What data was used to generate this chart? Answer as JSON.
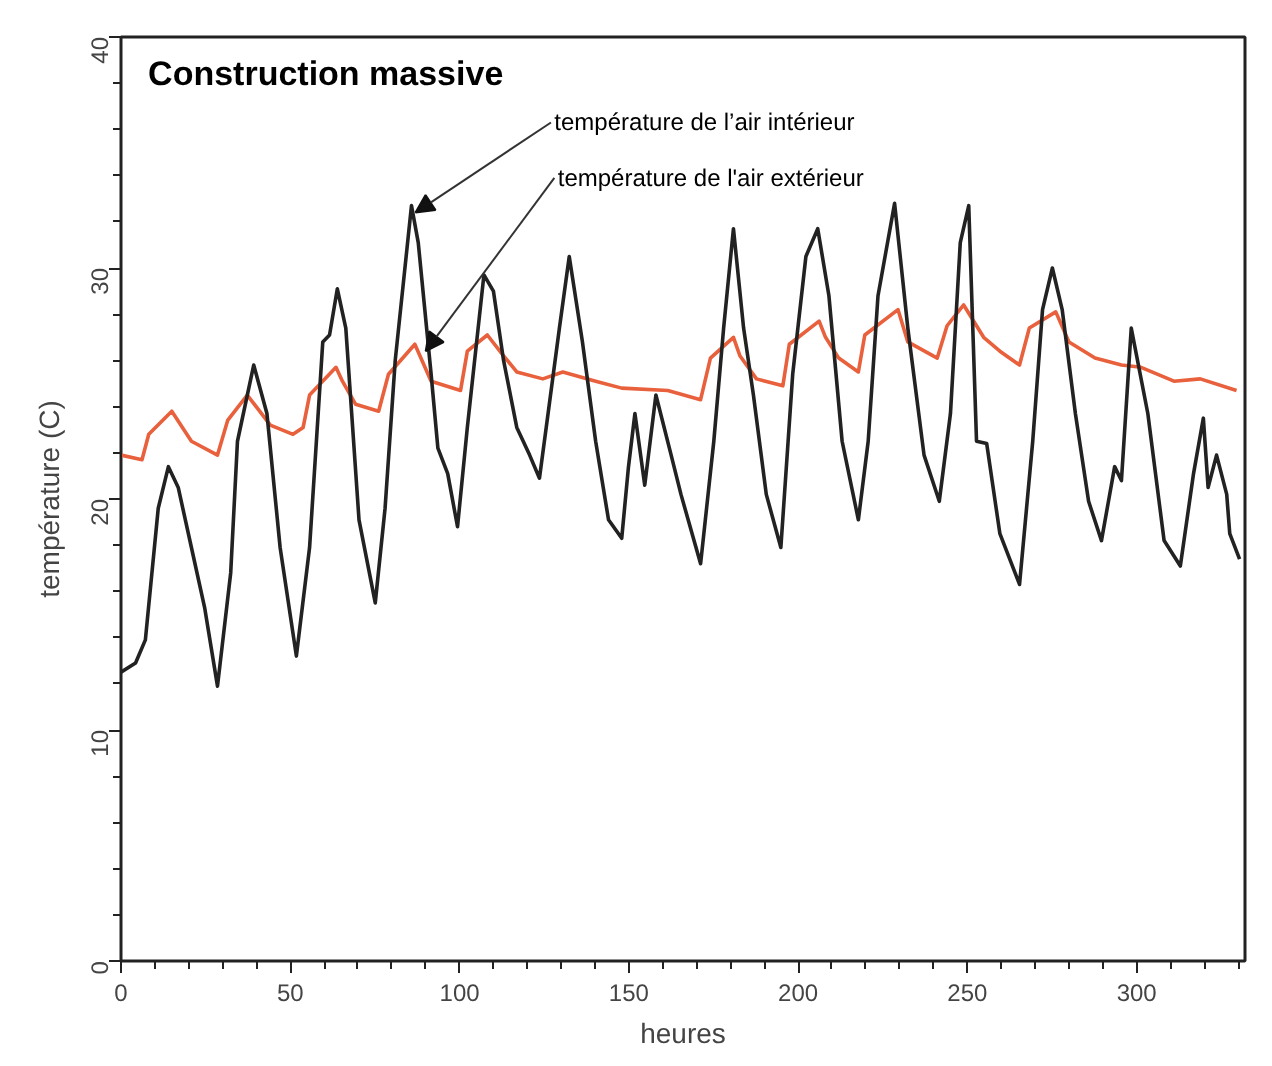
{
  "chart_data": {
    "type": "line",
    "title": "Construction massive",
    "xlabel": "heures",
    "ylabel": "température (C)",
    "annotations": [
      {
        "text": "température de l’air intérieur",
        "x": 86,
        "y": 32.4
      },
      {
        "text": "température de l'air extérieur",
        "x": 89,
        "y": 26.4
      }
    ],
    "xlim": [
      0,
      332
    ],
    "ylim": [
      0,
      40
    ],
    "xticks": [
      0,
      {
        "value": 10,
        "label": null
      },
      {
        "value": 20,
        "label": null
      },
      {
        "value": 30,
        "label": null
      },
      {
        "value": 40,
        "label": null
      },
      50,
      {
        "value": 60,
        "label": null
      },
      {
        "value": 70,
        "label": null
      },
      {
        "value": 80,
        "label": null
      },
      {
        "value": 90,
        "label": null
      },
      100,
      {
        "value": 110,
        "label": null
      },
      {
        "value": 120,
        "label": null
      },
      {
        "value": 130,
        "label": null
      },
      {
        "value": 140,
        "label": null
      },
      150,
      {
        "value": 160,
        "label": null
      },
      {
        "value": 170,
        "label": null
      },
      {
        "value": 180,
        "label": null
      },
      {
        "value": 190,
        "label": null
      },
      200,
      {
        "value": 210,
        "label": null
      },
      {
        "value": 220,
        "label": null
      },
      {
        "value": 230,
        "label": null
      },
      {
        "value": 240,
        "label": null
      },
      250,
      {
        "value": 260,
        "label": null
      },
      {
        "value": 270,
        "label": null
      },
      {
        "value": 280,
        "label": null
      },
      {
        "value": 290,
        "label": null
      },
      300,
      {
        "value": 310,
        "label": null
      },
      {
        "value": 320,
        "label": null
      },
      {
        "value": 330,
        "label": null
      }
    ],
    "yticks": [
      0,
      {
        "value": 2,
        "label": null
      },
      {
        "value": 4,
        "label": null
      },
      {
        "value": 6,
        "label": null
      },
      {
        "value": 8,
        "label": null
      },
      10,
      {
        "value": 12,
        "label": null
      },
      {
        "value": 14,
        "label": null
      },
      {
        "value": 16,
        "label": null
      },
      {
        "value": 18,
        "label": null
      },
      20,
      {
        "value": 22,
        "label": null
      },
      {
        "value": 24,
        "label": null
      },
      {
        "value": 26,
        "label": null
      },
      {
        "value": 28,
        "label": null
      },
      30,
      {
        "value": 32,
        "label": null
      },
      {
        "value": 34,
        "label": null
      },
      {
        "value": 36,
        "label": null
      },
      {
        "value": 38,
        "label": null
      },
      40
    ],
    "grid": false,
    "marker": "none",
    "line_style": "solid",
    "series": [
      {
        "color": "#e8603c",
        "x": [
          0,
          6.2,
          8.2,
          15,
          20.8,
          28.5,
          31.5,
          37.3,
          44.1,
          50.8,
          53.8,
          55.7,
          63.5,
          65.4,
          69.3,
          76.1,
          79,
          86.8,
          91.6,
          100.3,
          102.3,
          108.2,
          113,
          116.9,
          124.6,
          130.5,
          140.2,
          147.9,
          161.5,
          171.2,
          174.1,
          180.9,
          182.8,
          187.7,
          195.5,
          197.4,
          206.2,
          208.1,
          212,
          217.8,
          219.7,
          229.5,
          232.4,
          241.1,
          244,
          248.9,
          254.8,
          259.6,
          265.4,
          268.3,
          276.1,
          280,
          287.7,
          295.5,
          301.3,
          311,
          318.8,
          329.5
        ],
        "values": [
          21.9,
          21.7,
          22.8,
          23.8,
          22.5,
          21.9,
          23.4,
          24.5,
          23.2,
          22.8,
          23.1,
          24.5,
          25.7,
          25.1,
          24.1,
          23.8,
          25.4,
          26.7,
          25.1,
          24.7,
          26.4,
          27.1,
          26.2,
          25.5,
          25.2,
          25.5,
          25.1,
          24.8,
          24.7,
          24.3,
          26.1,
          27,
          26.2,
          25.2,
          24.9,
          26.7,
          27.7,
          27,
          26.1,
          25.5,
          27.1,
          28.2,
          26.8,
          26.1,
          27.5,
          28.4,
          27,
          26.4,
          25.8,
          27.4,
          28.1,
          26.8,
          26.1,
          25.8,
          25.7,
          25.1,
          25.2,
          24.7
        ]
      },
      {
        "color": "#222222",
        "x": [
          0,
          4.3,
          7.2,
          11,
          14,
          16.9,
          20.8,
          24.7,
          28.5,
          32.4,
          34.4,
          39.2,
          43.1,
          47,
          51.8,
          55.7,
          59.6,
          61.6,
          63.9,
          66.4,
          70.3,
          75.1,
          78,
          81,
          85.8,
          87.8,
          91.6,
          93.6,
          96.5,
          99.4,
          102.3,
          107.2,
          110,
          113,
          116.9,
          120.7,
          123.6,
          126.6,
          129.5,
          132.4,
          136.3,
          140.2,
          144,
          147.9,
          149.9,
          151.8,
          154.7,
          158,
          162.5,
          165.4,
          171.2,
          175.1,
          178,
          180.9,
          183.9,
          186.8,
          190.6,
          194.9,
          198.4,
          202.3,
          205.8,
          209.1,
          213,
          217.8,
          220.7,
          223.6,
          228.5,
          232.4,
          237.2,
          241.7,
          245,
          247.9,
          250.4,
          252.7,
          255.7,
          259.6,
          265.4,
          269.3,
          272.2,
          275.1,
          278,
          281.9,
          285.8,
          289.6,
          293.5,
          295.5,
          298.4,
          303.3,
          308.1,
          312.9,
          316.8,
          319.7,
          321.1,
          323.6,
          326.6,
          327.5,
          330.4
        ],
        "values": [
          12.5,
          12.9,
          13.9,
          19.6,
          21.4,
          20.5,
          17.9,
          15.3,
          11.9,
          16.8,
          22.5,
          25.8,
          23.7,
          17.9,
          13.2,
          17.9,
          26.8,
          27.1,
          29.1,
          27.4,
          19.1,
          15.5,
          19.6,
          26,
          32.7,
          31.1,
          25.4,
          22.2,
          21.1,
          18.8,
          23.1,
          29.7,
          29,
          26,
          23.1,
          21.9,
          20.9,
          24.2,
          27.4,
          30.5,
          26.8,
          22.5,
          19.1,
          18.3,
          21.4,
          23.7,
          20.6,
          24.5,
          21.9,
          20.2,
          17.2,
          22.5,
          27.4,
          31.7,
          27.4,
          24.5,
          20.2,
          17.9,
          25.4,
          30.5,
          31.7,
          28.8,
          22.5,
          19.1,
          22.5,
          28.8,
          32.8,
          27.4,
          21.9,
          19.9,
          23.7,
          31.1,
          32.7,
          22.5,
          22.4,
          18.5,
          16.3,
          22.5,
          28.2,
          30,
          28.2,
          23.7,
          19.9,
          18.2,
          21.4,
          20.8,
          27.4,
          23.7,
          18.2,
          17.1,
          21.1,
          23.5,
          20.5,
          21.9,
          20.2,
          18.5,
          17.4
        ]
      }
    ]
  }
}
